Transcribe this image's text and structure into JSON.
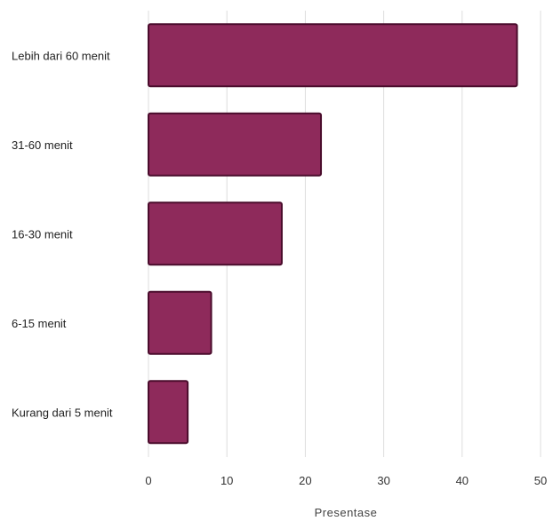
{
  "chart_data": {
    "type": "bar",
    "orientation": "horizontal",
    "categories": [
      "Lebih dari 60 menit",
      "31-60 menit",
      "16-30 menit",
      "6-15 menit",
      "Kurang dari 5 menit"
    ],
    "values": [
      47,
      22,
      17,
      8,
      5
    ],
    "xlabel": "Presentase",
    "ylabel": "",
    "xlim": [
      0,
      50
    ],
    "xticks": [
      "0",
      "10",
      "20",
      "30",
      "40",
      "50"
    ],
    "grid": "vertical",
    "legend": "none",
    "colors": {
      "bar_fill": "#8e2a5b",
      "bar_stroke": "#4a0c2c",
      "grid": "#dddddd"
    }
  }
}
